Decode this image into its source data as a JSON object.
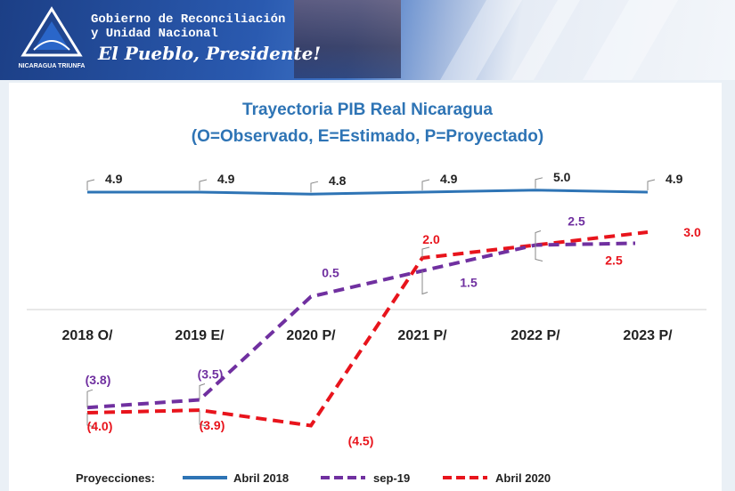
{
  "header": {
    "org_line1": "Gobierno de Reconciliación",
    "org_line2": "y Unidad Nacional",
    "slogan": "El Pueblo, Presidente!",
    "emblem_text": "NICARAGUA TRIUNFA"
  },
  "chart_data": {
    "type": "line",
    "title": "Trayectoria PIB Real Nicaragua",
    "subtitle": "(O=Observado, E=Estimado, P=Proyectado)",
    "categories": [
      "2018 O/",
      "2019 E/",
      "2020 P/",
      "2021 P/",
      "2022 P/",
      "2023 P/"
    ],
    "legend_title": "Proyecciones:",
    "legend_position": "bottom",
    "series": [
      {
        "name": "Abril 2018",
        "style": "solid",
        "color": "#2e74b5",
        "values": [
          4.9,
          4.9,
          4.8,
          4.9,
          5.0,
          4.9
        ],
        "labels": [
          "4.9",
          "4.9",
          "4.8",
          "4.9",
          "5.0",
          "4.9"
        ]
      },
      {
        "name": "sep-19",
        "style": "dashed",
        "color": "#7030a0",
        "values": [
          -3.8,
          -3.5,
          0.5,
          1.5,
          2.5,
          null
        ],
        "labels": [
          "(3.8)",
          "(3.5)",
          "0.5",
          "1.5",
          "2.5",
          ""
        ]
      },
      {
        "name": "Abril 2020",
        "style": "dashed",
        "color": "#e8141c",
        "values": [
          -4.0,
          -3.9,
          -4.5,
          2.0,
          2.5,
          3.0
        ],
        "labels": [
          "(4.0)",
          "(3.9)",
          "(4.5)",
          "2.0",
          "2.5",
          "3.0"
        ]
      }
    ]
  }
}
